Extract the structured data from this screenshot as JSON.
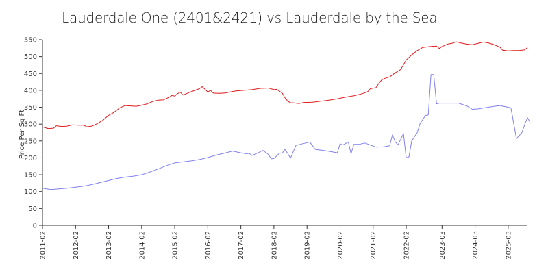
{
  "chart_data": {
    "type": "line",
    "title": "Lauderdale One (2401&2421) vs Lauderdale by the Sea",
    "xlabel": "",
    "ylabel": "Price Per Sq Ft",
    "ylim": [
      0,
      550
    ],
    "yticks": [
      0,
      50,
      100,
      150,
      200,
      250,
      300,
      350,
      400,
      450,
      500,
      550
    ],
    "xlim": [
      "2011-02",
      "2025-10"
    ],
    "xticks": [
      "2011-02",
      "2012-02",
      "2013-02",
      "2014-02",
      "2015-02",
      "2016-02",
      "2017-02",
      "2018-02",
      "2019-02",
      "2020-02",
      "2021-02",
      "2022-02",
      "2023-03",
      "2024-03",
      "2025-03"
    ],
    "grid": false,
    "legend": "none",
    "series": [
      {
        "color": "#e31a1c",
        "points": [
          [
            "2011-02",
            292
          ],
          [
            "2011-04",
            287
          ],
          [
            "2011-06",
            288
          ],
          [
            "2011-07",
            295
          ],
          [
            "2011-09",
            293
          ],
          [
            "2011-11",
            294
          ],
          [
            "2012-01",
            298
          ],
          [
            "2012-03",
            297
          ],
          [
            "2012-05",
            297
          ],
          [
            "2012-06",
            292
          ],
          [
            "2012-08",
            294
          ],
          [
            "2012-10",
            302
          ],
          [
            "2012-12",
            312
          ],
          [
            "2013-02",
            326
          ],
          [
            "2013-04",
            335
          ],
          [
            "2013-06",
            348
          ],
          [
            "2013-08",
            355
          ],
          [
            "2013-10",
            354
          ],
          [
            "2013-12",
            353
          ],
          [
            "2014-02",
            356
          ],
          [
            "2014-04",
            360
          ],
          [
            "2014-06",
            367
          ],
          [
            "2014-08",
            371
          ],
          [
            "2014-10",
            372
          ],
          [
            "2014-12",
            380
          ],
          [
            "2015-01",
            385
          ],
          [
            "2015-02",
            383
          ],
          [
            "2015-03",
            390
          ],
          [
            "2015-04",
            395
          ],
          [
            "2015-05",
            386
          ],
          [
            "2015-07",
            393
          ],
          [
            "2015-09",
            399
          ],
          [
            "2015-11",
            405
          ],
          [
            "2015-12",
            411
          ],
          [
            "2016-02",
            395
          ],
          [
            "2016-03",
            400
          ],
          [
            "2016-04",
            392
          ],
          [
            "2016-06",
            391
          ],
          [
            "2016-08",
            392
          ],
          [
            "2016-10",
            395
          ],
          [
            "2016-12",
            398
          ],
          [
            "2017-03",
            400
          ],
          [
            "2017-06",
            402
          ],
          [
            "2017-09",
            406
          ],
          [
            "2017-12",
            407
          ],
          [
            "2018-02",
            402
          ],
          [
            "2018-03",
            403
          ],
          [
            "2018-05",
            392
          ],
          [
            "2018-06",
            378
          ],
          [
            "2018-07",
            368
          ],
          [
            "2018-08",
            363
          ],
          [
            "2018-09",
            363
          ],
          [
            "2018-11",
            361
          ],
          [
            "2019-01",
            364
          ],
          [
            "2019-04",
            365
          ],
          [
            "2019-07",
            368
          ],
          [
            "2019-10",
            371
          ],
          [
            "2020-01",
            375
          ],
          [
            "2020-04",
            380
          ],
          [
            "2020-07",
            384
          ],
          [
            "2020-10",
            390
          ],
          [
            "2020-12",
            396
          ],
          [
            "2021-01",
            405
          ],
          [
            "2021-03",
            408
          ],
          [
            "2021-04",
            420
          ],
          [
            "2021-05",
            430
          ],
          [
            "2021-06",
            435
          ],
          [
            "2021-08",
            440
          ],
          [
            "2021-10",
            452
          ],
          [
            "2021-12",
            462
          ],
          [
            "2022-02",
            490
          ],
          [
            "2022-04",
            505
          ],
          [
            "2022-06",
            518
          ],
          [
            "2022-08",
            527
          ],
          [
            "2022-10",
            529
          ],
          [
            "2022-12",
            531
          ],
          [
            "2023-01",
            531
          ],
          [
            "2023-02",
            524
          ],
          [
            "2023-03",
            530
          ],
          [
            "2023-05",
            537
          ],
          [
            "2023-07",
            540
          ],
          [
            "2023-08",
            544
          ],
          [
            "2023-10",
            540
          ],
          [
            "2023-12",
            537
          ],
          [
            "2024-02",
            535
          ],
          [
            "2024-04",
            539
          ],
          [
            "2024-06",
            543
          ],
          [
            "2024-08",
            540
          ],
          [
            "2024-10",
            535
          ],
          [
            "2024-12",
            528
          ],
          [
            "2025-01",
            519
          ],
          [
            "2025-03",
            517
          ],
          [
            "2025-05",
            518
          ],
          [
            "2025-07",
            518
          ],
          [
            "2025-09",
            520
          ],
          [
            "2025-10",
            527
          ]
        ]
      },
      {
        "color": "#8080f0",
        "points": [
          [
            "2011-02",
            110
          ],
          [
            "2011-05",
            106
          ],
          [
            "2011-08",
            108
          ],
          [
            "2011-11",
            110
          ],
          [
            "2012-02",
            113
          ],
          [
            "2012-05",
            116
          ],
          [
            "2012-08",
            121
          ],
          [
            "2012-11",
            127
          ],
          [
            "2013-02",
            133
          ],
          [
            "2013-05",
            139
          ],
          [
            "2013-08",
            143
          ],
          [
            "2013-11",
            146
          ],
          [
            "2014-02",
            150
          ],
          [
            "2014-05",
            158
          ],
          [
            "2014-08",
            167
          ],
          [
            "2014-11",
            177
          ],
          [
            "2015-02",
            185
          ],
          [
            "2015-05",
            188
          ],
          [
            "2015-08",
            191
          ],
          [
            "2015-11",
            195
          ],
          [
            "2016-02",
            201
          ],
          [
            "2016-05",
            208
          ],
          [
            "2016-08",
            214
          ],
          [
            "2016-11",
            220
          ],
          [
            "2017-02",
            215
          ],
          [
            "2017-04",
            212
          ],
          [
            "2017-05",
            214
          ],
          [
            "2017-06",
            207
          ],
          [
            "2017-08",
            214
          ],
          [
            "2017-10",
            222
          ],
          [
            "2017-12",
            210
          ],
          [
            "2018-01",
            197
          ],
          [
            "2018-02",
            198
          ],
          [
            "2018-04",
            214
          ],
          [
            "2018-05",
            214
          ],
          [
            "2018-06",
            225
          ],
          [
            "2018-07",
            213
          ],
          [
            "2018-08",
            199
          ],
          [
            "2018-10",
            237
          ],
          [
            "2019-01",
            243
          ],
          [
            "2019-03",
            247
          ],
          [
            "2019-05",
            225
          ],
          [
            "2019-08",
            222
          ],
          [
            "2019-11",
            218
          ],
          [
            "2020-01",
            215
          ],
          [
            "2020-02",
            242
          ],
          [
            "2020-03",
            238
          ],
          [
            "2020-05",
            247
          ],
          [
            "2020-06",
            212
          ],
          [
            "2020-07",
            240
          ],
          [
            "2020-09",
            240
          ],
          [
            "2020-11",
            244
          ],
          [
            "2021-03",
            232
          ],
          [
            "2021-06",
            233
          ],
          [
            "2021-08",
            236
          ],
          [
            "2021-09",
            268
          ],
          [
            "2021-10",
            248
          ],
          [
            "2021-11",
            238
          ],
          [
            "2022-01",
            272
          ],
          [
            "2022-02",
            200
          ],
          [
            "2022-03",
            203
          ],
          [
            "2022-04",
            250
          ],
          [
            "2022-06",
            275
          ],
          [
            "2022-07",
            301
          ],
          [
            "2022-09",
            326
          ],
          [
            "2022-10",
            327
          ],
          [
            "2022-11",
            447
          ],
          [
            "2022-12",
            447
          ],
          [
            "2023-01",
            360
          ],
          [
            "2023-02",
            362
          ],
          [
            "2023-06",
            362
          ],
          [
            "2023-09",
            362
          ],
          [
            "2023-12",
            354
          ],
          [
            "2024-02",
            344
          ],
          [
            "2024-04",
            345
          ],
          [
            "2024-07",
            349
          ],
          [
            "2024-10",
            353
          ],
          [
            "2024-12",
            355
          ],
          [
            "2025-03",
            350
          ],
          [
            "2025-04",
            348
          ],
          [
            "2025-06",
            257
          ],
          [
            "2025-08",
            275
          ],
          [
            "2025-09",
            299
          ],
          [
            "2025-10",
            319
          ],
          [
            "2025-11",
            305
          ]
        ]
      }
    ]
  }
}
